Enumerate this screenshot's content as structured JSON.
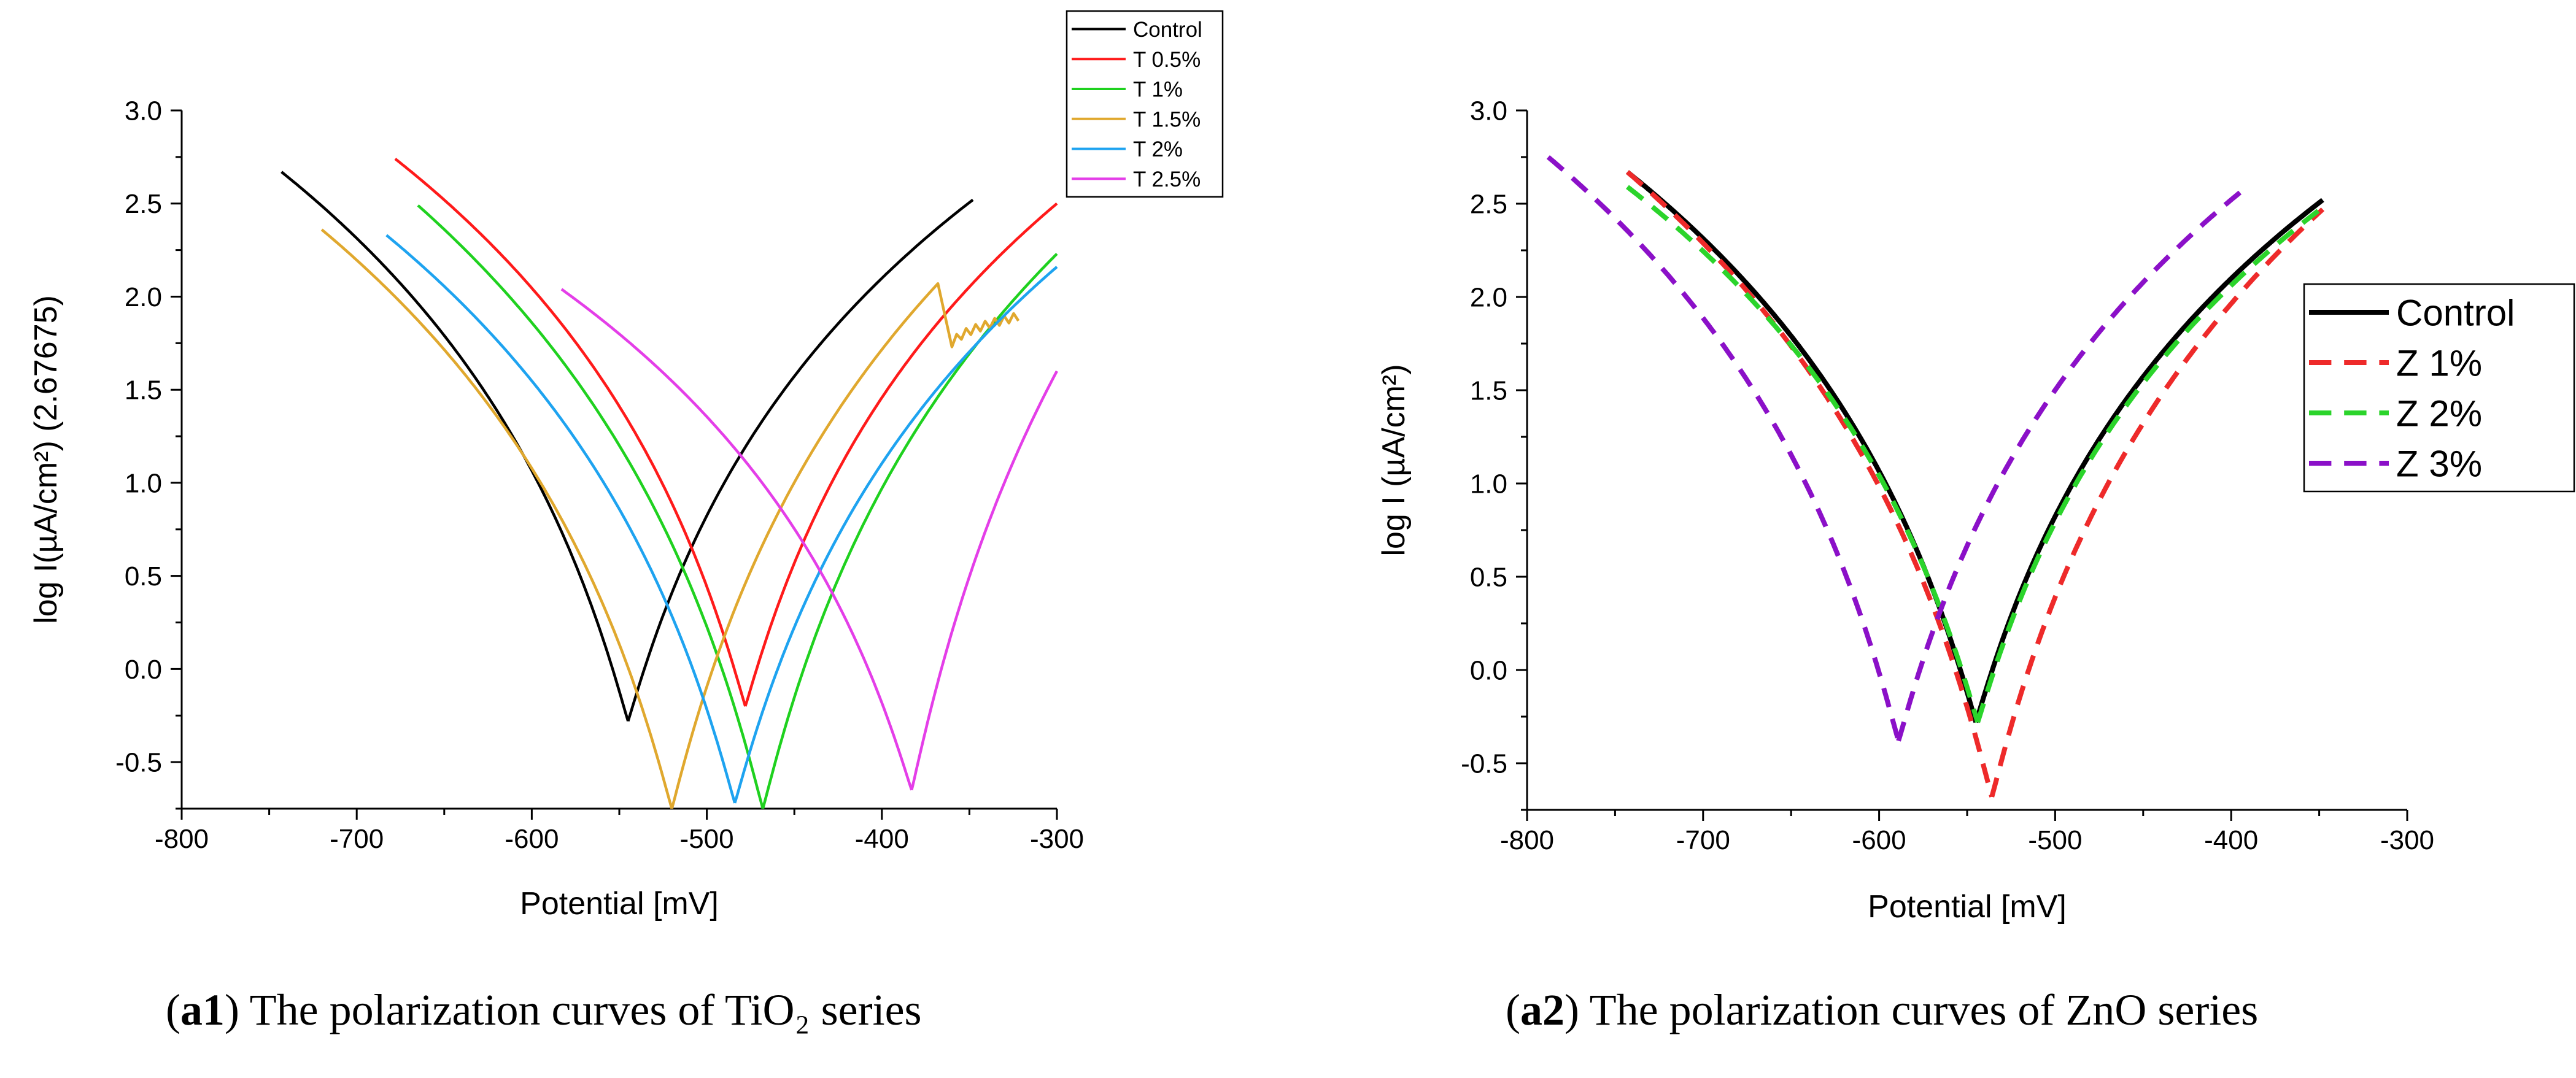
{
  "chart_data": [
    {
      "panel": "a1",
      "type": "line",
      "title": "",
      "xlabel": "Potential [mV]",
      "ylabel": "log I(µA/cm²) (2.67675)",
      "xlim": [
        -800,
        -300
      ],
      "ylim": [
        -0.75,
        3.0
      ],
      "x_ticks": [
        -800,
        -700,
        -600,
        -500,
        -400,
        -300
      ],
      "x_tick_labels": [
        "-800",
        "-700",
        "-600",
        "-500",
        "-400",
        "-300"
      ],
      "y_ticks": [
        -0.5,
        0.0,
        0.5,
        1.0,
        1.5,
        2.0,
        2.5,
        3.0
      ],
      "y_tick_labels": [
        "-0.5",
        "0.0",
        "0.5",
        "1.0",
        "1.5",
        "2.0",
        "2.5",
        "3.0"
      ],
      "grid": false,
      "legend_position": "top-right outside",
      "series": [
        {
          "name": "Control",
          "color": "#000000",
          "cathodic": {
            "start": [
              -743,
              2.67
            ],
            "dip": [
              -545,
              -0.28
            ]
          },
          "anodic": {
            "dip": [
              -545,
              -0.28
            ],
            "end": [
              -348,
              2.52
            ]
          }
        },
        {
          "name": "T 0.5%",
          "color": "#ff1a1a",
          "cathodic": {
            "start": [
              -678,
              2.74
            ],
            "dip": [
              -478,
              -0.2
            ]
          },
          "anodic": {
            "dip": [
              -478,
              -0.2
            ],
            "end": [
              -300,
              2.5
            ]
          }
        },
        {
          "name": "T 1%",
          "color": "#1fd11f",
          "cathodic": {
            "start": [
              -665,
              2.49
            ],
            "dip": [
              -468,
              -0.75
            ]
          },
          "anodic": {
            "dip": [
              -468,
              -0.75
            ],
            "end": [
              -300,
              2.23
            ]
          }
        },
        {
          "name": "T 1.5%",
          "color": "#e0a82e",
          "cathodic": {
            "start": [
              -720,
              2.36
            ],
            "dip": [
              -520,
              -0.75
            ]
          },
          "anodic": {
            "dip": [
              -520,
              -0.75
            ],
            "peak": [
              -368,
              2.07
            ],
            "after_dip": [
              -360,
              1.73
            ],
            "end": [
              -322,
              1.89
            ]
          }
        },
        {
          "name": "T 2%",
          "color": "#1ea3f0",
          "cathodic": {
            "start": [
              -683,
              2.33
            ],
            "dip": [
              -484,
              -0.72
            ]
          },
          "anodic": {
            "dip": [
              -484,
              -0.72
            ],
            "end": [
              -300,
              2.16
            ]
          }
        },
        {
          "name": "T 2.5%",
          "color": "#e43ee8",
          "cathodic": {
            "start": [
              -583,
              2.04
            ],
            "dip": [
              -383,
              -0.65
            ]
          },
          "anodic": {
            "dip": [
              -383,
              -0.65
            ],
            "end": [
              -300,
              1.6
            ]
          }
        }
      ]
    },
    {
      "panel": "a2",
      "type": "line",
      "title": "",
      "xlabel": "Potential [mV]",
      "ylabel": "log I (µA/cm²)",
      "xlim": [
        -800,
        -300
      ],
      "ylim": [
        -0.75,
        3.0
      ],
      "x_ticks": [
        -800,
        -700,
        -600,
        -500,
        -400,
        -300
      ],
      "x_tick_labels": [
        "-800",
        "-700",
        "-600",
        "-500",
        "-400",
        "-300"
      ],
      "y_ticks": [
        -0.5,
        0.0,
        0.5,
        1.0,
        1.5,
        2.0,
        2.5,
        3.0
      ],
      "y_tick_labels": [
        "-0.5",
        "0.0",
        "0.5",
        "1.0",
        "1.5",
        "2.0",
        "2.5",
        "3.0"
      ],
      "grid": false,
      "legend_position": "right outside",
      "series": [
        {
          "name": "Control",
          "color": "#000000",
          "style": "solid",
          "cathodic": {
            "start": [
              -743,
              2.67
            ],
            "dip": [
              -545,
              -0.28
            ]
          },
          "anodic": {
            "dip": [
              -545,
              -0.28
            ],
            "end": [
              -348,
              2.52
            ]
          }
        },
        {
          "name": "Z 1%",
          "color": "#ee2a2a",
          "style": "dashed",
          "cathodic": {
            "start": [
              -743,
              2.67
            ],
            "dip": [
              -536,
              -0.68
            ]
          },
          "anodic": {
            "dip": [
              -536,
              -0.68
            ],
            "end": [
              -348,
              2.47
            ]
          }
        },
        {
          "name": "Z 2%",
          "color": "#2bd42b",
          "style": "dashed",
          "cathodic": {
            "start": [
              -743,
              2.59
            ],
            "dip": [
              -544,
              -0.28
            ]
          },
          "anodic": {
            "dip": [
              -544,
              -0.28
            ],
            "end": [
              -348,
              2.48
            ]
          }
        },
        {
          "name": "Z 3%",
          "color": "#8b10c8",
          "style": "dashed",
          "cathodic": {
            "start": [
              -788,
              2.75
            ],
            "dip": [
              -589,
              -0.38
            ]
          },
          "anodic": {
            "dip": [
              -589,
              -0.38
            ],
            "end": [
              -395,
              2.56
            ]
          }
        }
      ]
    }
  ],
  "captions": {
    "a1": {
      "label": "a1",
      "text": "The polarization curves of TiO₂ series"
    },
    "a2": {
      "label": "a2",
      "text": "The polarization curves of ZnO series"
    }
  }
}
